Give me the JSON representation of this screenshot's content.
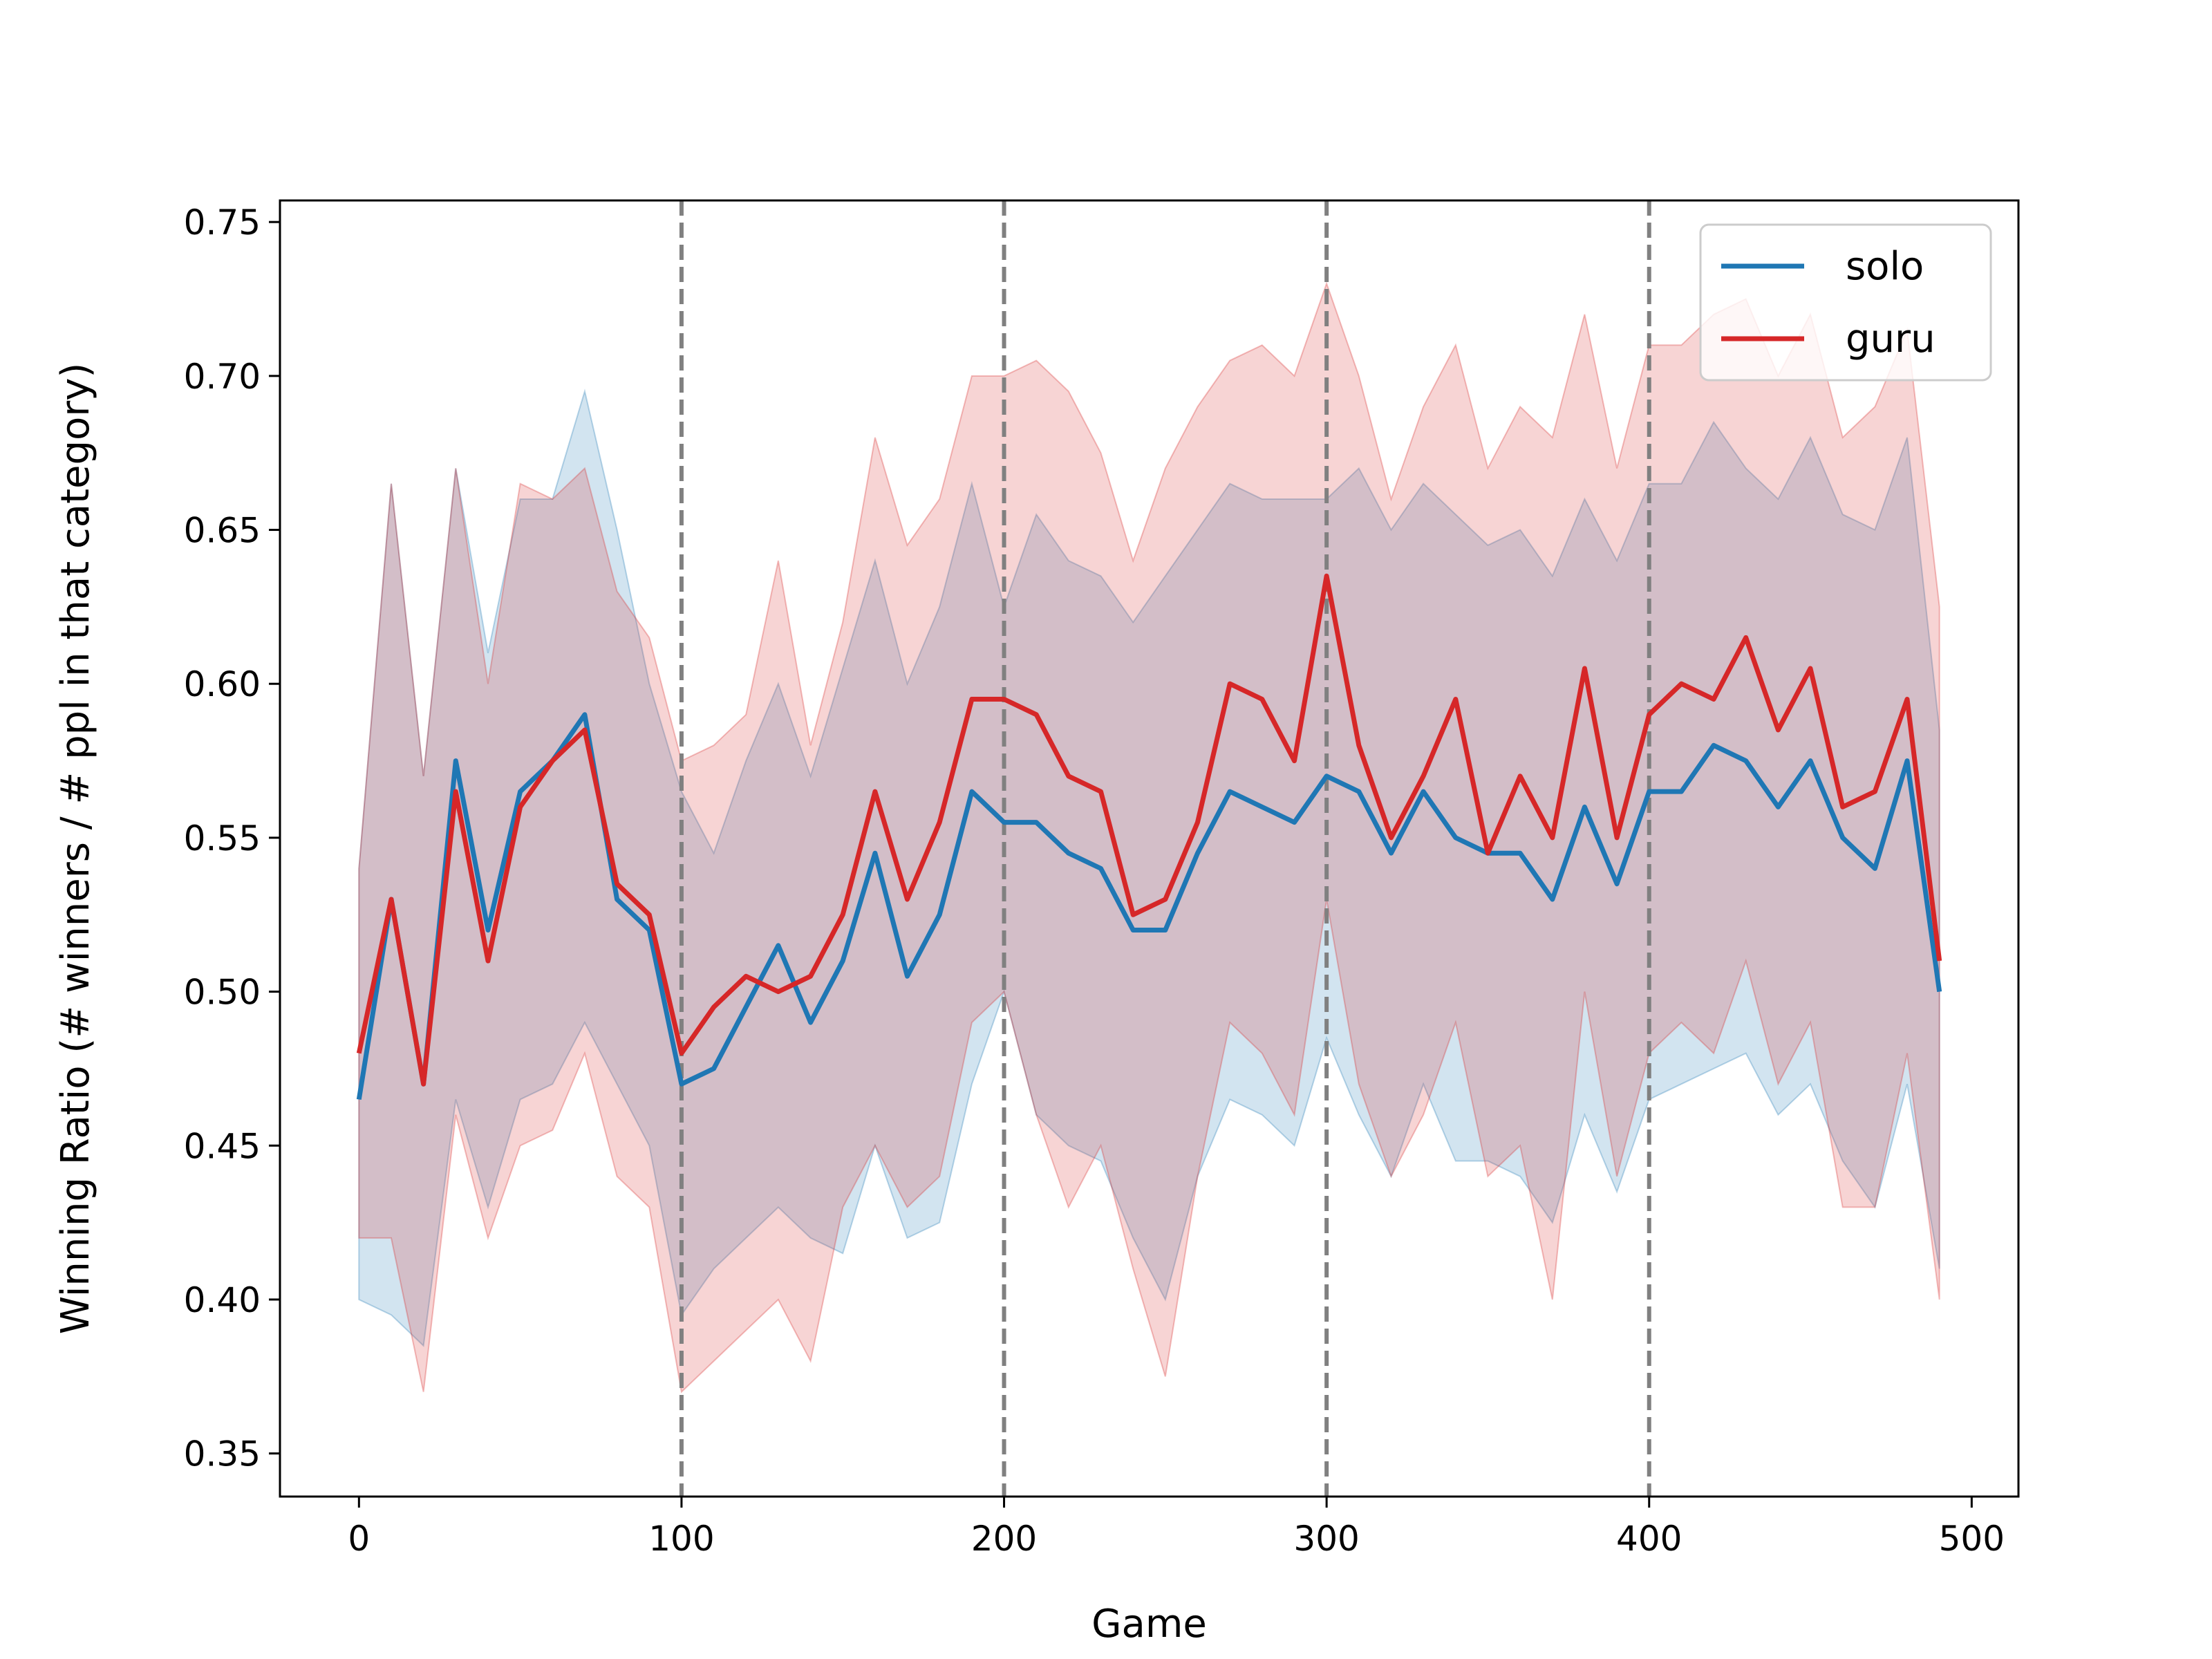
{
  "chart_data": {
    "type": "line",
    "title": "",
    "xlabel": "Game",
    "ylabel": "Winning Ratio (# winners / # ppl in that category)",
    "xlim": [
      -24.5,
      514.5
    ],
    "ylim": [
      0.336,
      0.757
    ],
    "xticks": [
      0,
      100,
      200,
      300,
      400,
      500
    ],
    "xtick_labels": [
      "0",
      "100",
      "200",
      "300",
      "400",
      "500"
    ],
    "yticks": [
      0.35,
      0.4,
      0.45,
      0.5,
      0.55,
      0.6,
      0.65,
      0.7,
      0.75
    ],
    "ytick_labels": [
      "0.35",
      "0.40",
      "0.45",
      "0.50",
      "0.55",
      "0.60",
      "0.65",
      "0.70",
      "0.75"
    ],
    "vlines": [
      100,
      200,
      300,
      400
    ],
    "grid": false,
    "legend_position": "top-right",
    "x": [
      0,
      10,
      20,
      30,
      40,
      50,
      60,
      70,
      80,
      90,
      100,
      110,
      120,
      130,
      140,
      150,
      160,
      170,
      180,
      190,
      200,
      210,
      220,
      230,
      240,
      250,
      260,
      270,
      280,
      290,
      300,
      310,
      320,
      330,
      340,
      350,
      360,
      370,
      380,
      390,
      400,
      410,
      420,
      430,
      440,
      450,
      460,
      470,
      480,
      490
    ],
    "series": [
      {
        "name": "solo",
        "color": "#1f77b4",
        "values": [
          0.465,
          0.53,
          0.47,
          0.575,
          0.52,
          0.565,
          0.575,
          0.59,
          0.53,
          0.52,
          0.47,
          0.475,
          0.495,
          0.515,
          0.49,
          0.51,
          0.545,
          0.505,
          0.525,
          0.565,
          0.555,
          0.555,
          0.545,
          0.54,
          0.52,
          0.52,
          0.545,
          0.565,
          0.56,
          0.555,
          0.57,
          0.565,
          0.545,
          0.565,
          0.55,
          0.545,
          0.545,
          0.53,
          0.56,
          0.535,
          0.565,
          0.565,
          0.58,
          0.575,
          0.56,
          0.575,
          0.55,
          0.54,
          0.575,
          0.5
        ],
        "lower": [
          0.4,
          0.395,
          0.385,
          0.465,
          0.43,
          0.465,
          0.47,
          0.49,
          0.47,
          0.45,
          0.395,
          0.41,
          0.42,
          0.43,
          0.42,
          0.415,
          0.45,
          0.42,
          0.425,
          0.47,
          0.5,
          0.46,
          0.45,
          0.445,
          0.42,
          0.4,
          0.44,
          0.465,
          0.46,
          0.45,
          0.485,
          0.46,
          0.44,
          0.47,
          0.445,
          0.445,
          0.44,
          0.425,
          0.46,
          0.435,
          0.465,
          0.47,
          0.475,
          0.48,
          0.46,
          0.47,
          0.445,
          0.43,
          0.47,
          0.41
        ],
        "upper": [
          0.54,
          0.665,
          0.57,
          0.67,
          0.61,
          0.66,
          0.66,
          0.695,
          0.65,
          0.6,
          0.565,
          0.545,
          0.575,
          0.6,
          0.57,
          0.605,
          0.64,
          0.6,
          0.625,
          0.665,
          0.625,
          0.655,
          0.64,
          0.635,
          0.62,
          0.635,
          0.65,
          0.665,
          0.66,
          0.66,
          0.66,
          0.67,
          0.65,
          0.665,
          0.655,
          0.645,
          0.65,
          0.635,
          0.66,
          0.64,
          0.665,
          0.665,
          0.685,
          0.67,
          0.66,
          0.68,
          0.655,
          0.65,
          0.68,
          0.585
        ]
      },
      {
        "name": "guru",
        "color": "#d62728",
        "values": [
          0.48,
          0.53,
          0.47,
          0.565,
          0.51,
          0.56,
          0.575,
          0.585,
          0.535,
          0.525,
          0.48,
          0.495,
          0.505,
          0.5,
          0.505,
          0.525,
          0.565,
          0.53,
          0.555,
          0.595,
          0.595,
          0.59,
          0.57,
          0.565,
          0.525,
          0.53,
          0.555,
          0.6,
          0.595,
          0.575,
          0.635,
          0.58,
          0.55,
          0.57,
          0.595,
          0.545,
          0.57,
          0.55,
          0.605,
          0.55,
          0.59,
          0.6,
          0.595,
          0.615,
          0.585,
          0.605,
          0.56,
          0.565,
          0.595,
          0.51
        ],
        "lower": [
          0.42,
          0.42,
          0.37,
          0.46,
          0.42,
          0.45,
          0.455,
          0.48,
          0.44,
          0.43,
          0.37,
          0.38,
          0.39,
          0.4,
          0.38,
          0.43,
          0.45,
          0.43,
          0.44,
          0.49,
          0.5,
          0.46,
          0.43,
          0.45,
          0.41,
          0.375,
          0.44,
          0.49,
          0.48,
          0.46,
          0.53,
          0.47,
          0.44,
          0.46,
          0.49,
          0.44,
          0.45,
          0.4,
          0.5,
          0.44,
          0.48,
          0.49,
          0.48,
          0.51,
          0.47,
          0.49,
          0.43,
          0.43,
          0.48,
          0.4
        ],
        "upper": [
          0.54,
          0.665,
          0.57,
          0.67,
          0.6,
          0.665,
          0.66,
          0.67,
          0.63,
          0.615,
          0.575,
          0.58,
          0.59,
          0.64,
          0.58,
          0.62,
          0.68,
          0.645,
          0.66,
          0.7,
          0.7,
          0.705,
          0.695,
          0.675,
          0.64,
          0.67,
          0.69,
          0.705,
          0.71,
          0.7,
          0.73,
          0.7,
          0.66,
          0.69,
          0.71,
          0.67,
          0.69,
          0.68,
          0.72,
          0.67,
          0.71,
          0.71,
          0.72,
          0.725,
          0.7,
          0.72,
          0.68,
          0.69,
          0.715,
          0.625
        ]
      }
    ]
  }
}
